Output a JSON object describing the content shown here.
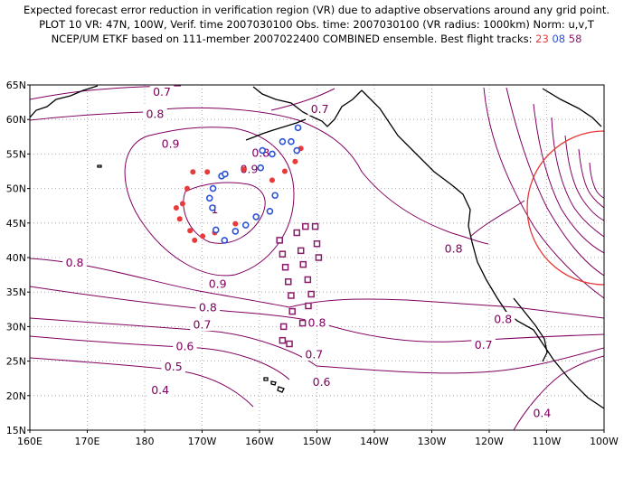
{
  "title": {
    "line1": "Expected forecast error reduction in verification region (VR) due to adaptive observations around any grid point.",
    "line2": "PLOT 10 VR: 47N, 100W, Verif. time 2007030100 Obs. time: 2007030100 (VR radius: 1000km) Norm: u,v,T",
    "line3_prefix": "NCEP/UM ETKF based on 111-member 2007022400 COMBINED ensemble.  Best flight tracks:",
    "track_a": "23",
    "track_b": "08",
    "track_c": "58"
  },
  "axes": {
    "y_ticks": [
      "65N",
      "60N",
      "55N",
      "50N",
      "45N",
      "40N",
      "35N",
      "30N",
      "25N",
      "20N",
      "15N"
    ],
    "x_ticks": [
      "160E",
      "170E",
      "180",
      "170W",
      "160W",
      "150W",
      "140W",
      "130W",
      "120W",
      "110W",
      "100W"
    ]
  },
  "contour_labels": [
    {
      "text": "0.7",
      "lon": -177.0,
      "lat": 64.0
    },
    {
      "text": "0.8",
      "lon": -178.2,
      "lat": 60.8
    },
    {
      "text": "0.9",
      "lon": -175.5,
      "lat": 56.5
    },
    {
      "text": "0.7",
      "lon": -149.5,
      "lat": 61.5
    },
    {
      "text": "0.8",
      "lon": -159.8,
      "lat": 55.2
    },
    {
      "text": "0.9",
      "lon": -161.8,
      "lat": 52.8
    },
    {
      "text": "1",
      "lon": -167.8,
      "lat": 47.0
    },
    {
      "text": "0.8",
      "lon": -126.2,
      "lat": 41.3
    },
    {
      "text": "0.8",
      "lon": 167.8,
      "lat": 39.3
    },
    {
      "text": "0.9",
      "lon": -167.3,
      "lat": 36.2
    },
    {
      "text": "0.8",
      "lon": -169.0,
      "lat": 32.8
    },
    {
      "text": "0.7",
      "lon": -170.0,
      "lat": 30.3
    },
    {
      "text": "0.6",
      "lon": -173.0,
      "lat": 27.2
    },
    {
      "text": "0.5",
      "lon": -175.0,
      "lat": 24.2
    },
    {
      "text": "0.4",
      "lon": -177.3,
      "lat": 20.8
    },
    {
      "text": "0.8",
      "lon": -150.0,
      "lat": 30.6
    },
    {
      "text": "0.7",
      "lon": -150.5,
      "lat": 26.0
    },
    {
      "text": "0.6",
      "lon": -149.2,
      "lat": 22.0
    },
    {
      "text": "0.8",
      "lon": -117.6,
      "lat": 31.1
    },
    {
      "text": "0.7",
      "lon": -121.0,
      "lat": 27.4
    },
    {
      "text": "0.4",
      "lon": -110.8,
      "lat": 17.5
    }
  ],
  "verification_region": {
    "center_lon": -100.0,
    "center_lat": 47.0,
    "radius_km": 1000,
    "color": "#e83a3a"
  },
  "tracks": {
    "track_23": {
      "color": "#e83a3a",
      "points": [
        [
          -174.5,
          47.2
        ],
        [
          -173.9,
          45.6
        ],
        [
          -173.4,
          47.8
        ],
        [
          -172.1,
          43.9
        ],
        [
          -171.3,
          42.5
        ],
        [
          -169.9,
          43.1
        ],
        [
          -167.8,
          43.6
        ],
        [
          -164.2,
          44.9
        ],
        [
          -172.6,
          50.0
        ],
        [
          -171.6,
          52.4
        ],
        [
          -169.1,
          52.4
        ],
        [
          -162.7,
          52.8
        ],
        [
          -157.8,
          51.2
        ],
        [
          -155.6,
          52.5
        ],
        [
          -153.8,
          53.9
        ],
        [
          -152.8,
          55.8
        ]
      ]
    },
    "track_08": {
      "color": "#2b52d8",
      "points": [
        [
          -168.2,
          47.2
        ],
        [
          -168.7,
          48.6
        ],
        [
          -168.1,
          50.0
        ],
        [
          -166.6,
          51.8
        ],
        [
          -166.0,
          52.1
        ],
        [
          -167.6,
          44.0
        ],
        [
          -166.1,
          42.5
        ],
        [
          -164.2,
          43.8
        ],
        [
          -162.4,
          44.7
        ],
        [
          -160.6,
          45.9
        ],
        [
          -158.2,
          46.7
        ],
        [
          -157.3,
          49.0
        ],
        [
          -159.8,
          53.0
        ],
        [
          -157.8,
          55.0
        ],
        [
          -156.0,
          56.8
        ],
        [
          -154.5,
          56.8
        ],
        [
          -153.3,
          58.8
        ],
        [
          -153.5,
          55.5
        ],
        [
          -159.5,
          55.5
        ]
      ]
    },
    "track_58": {
      "color": "#8a1a6a",
      "points": [
        [
          -156.5,
          42.5
        ],
        [
          -156.0,
          40.5
        ],
        [
          -155.5,
          38.6
        ],
        [
          -155.0,
          36.5
        ],
        [
          -154.5,
          34.5
        ],
        [
          -154.3,
          32.2
        ],
        [
          -155.8,
          30.0
        ],
        [
          -156.0,
          28.0
        ],
        [
          -154.8,
          27.5
        ],
        [
          -153.5,
          43.6
        ],
        [
          -152.8,
          41.0
        ],
        [
          -152.4,
          39.0
        ],
        [
          -151.6,
          36.8
        ],
        [
          -151.0,
          34.7
        ],
        [
          -151.5,
          33.0
        ],
        [
          -152.0,
          44.5
        ],
        [
          -150.3,
          44.5
        ],
        [
          -150.0,
          42.0
        ],
        [
          -149.7,
          40.0
        ],
        [
          -152.5,
          30.5
        ]
      ]
    }
  },
  "colors": {
    "contour": "#800060",
    "coast": "#000000",
    "grid": "#9a9a9a"
  }
}
